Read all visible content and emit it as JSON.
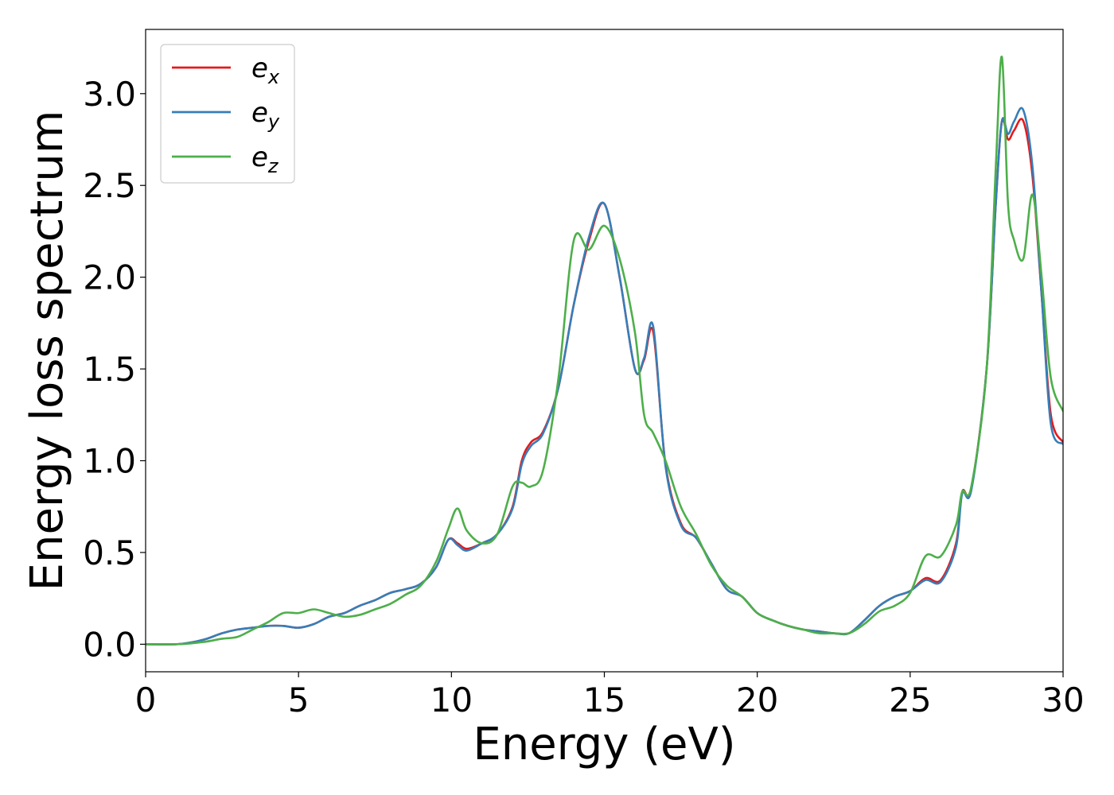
{
  "chart_data": {
    "type": "line",
    "title": "",
    "xlabel": "Energy (eV)",
    "ylabel": "Energy loss spectrum",
    "xlim": [
      0,
      30
    ],
    "ylim": [
      -0.15,
      3.35
    ],
    "xticks": [
      0,
      5,
      10,
      15,
      20,
      25,
      30
    ],
    "xtick_labels": [
      "0",
      "5",
      "10",
      "15",
      "20",
      "25",
      "30"
    ],
    "yticks": [
      0.0,
      0.5,
      1.0,
      1.5,
      2.0,
      2.5,
      3.0
    ],
    "ytick_labels": [
      "0.0",
      "0.5",
      "1.0",
      "1.5",
      "2.0",
      "2.5",
      "3.0"
    ],
    "grid": false,
    "legend_position": "top-left",
    "series": [
      {
        "name": "e",
        "subscript": "x",
        "color": "#e41a1c",
        "x": [
          0,
          1,
          1.5,
          2,
          2.5,
          3,
          3.5,
          4,
          4.5,
          5,
          5.5,
          6,
          6.5,
          7,
          7.5,
          8,
          8.5,
          9,
          9.5,
          9.9,
          10.2,
          10.5,
          11,
          11.5,
          12,
          12.3,
          12.6,
          13,
          13.5,
          14,
          14.5,
          15,
          15.5,
          16,
          16.3,
          16.6,
          17,
          17.5,
          18,
          18.5,
          19,
          19.5,
          20,
          20.5,
          21,
          21.5,
          22,
          22.5,
          23,
          23.5,
          24,
          24.5,
          25,
          25.5,
          26,
          26.5,
          26.7,
          27,
          27.5,
          27.8,
          28,
          28.2,
          28.4,
          28.7,
          29,
          29.3,
          29.6,
          30
        ],
        "values": [
          0.0,
          0.0,
          0.01,
          0.03,
          0.06,
          0.08,
          0.09,
          0.1,
          0.1,
          0.09,
          0.11,
          0.15,
          0.17,
          0.21,
          0.24,
          0.28,
          0.3,
          0.33,
          0.42,
          0.57,
          0.55,
          0.52,
          0.55,
          0.6,
          0.75,
          1.0,
          1.1,
          1.16,
          1.4,
          1.85,
          2.2,
          2.4,
          2.0,
          1.5,
          1.55,
          1.7,
          0.98,
          0.66,
          0.58,
          0.44,
          0.3,
          0.26,
          0.17,
          0.13,
          0.1,
          0.08,
          0.07,
          0.06,
          0.06,
          0.13,
          0.21,
          0.26,
          0.29,
          0.36,
          0.35,
          0.55,
          0.83,
          0.85,
          1.5,
          2.4,
          2.85,
          2.75,
          2.8,
          2.85,
          2.55,
          1.9,
          1.25,
          1.1
        ]
      },
      {
        "name": "e",
        "subscript": "y",
        "color": "#377eb8",
        "x": [
          0,
          1,
          1.5,
          2,
          2.5,
          3,
          3.5,
          4,
          4.5,
          5,
          5.5,
          6,
          6.5,
          7,
          7.5,
          8,
          8.5,
          9,
          9.5,
          9.9,
          10.2,
          10.5,
          11,
          11.5,
          12,
          12.3,
          12.6,
          13,
          13.5,
          14,
          14.5,
          15,
          15.5,
          16,
          16.3,
          16.6,
          17,
          17.5,
          18,
          18.5,
          19,
          19.5,
          20,
          20.5,
          21,
          21.5,
          22,
          22.5,
          23,
          23.5,
          24,
          24.5,
          25,
          25.5,
          26,
          26.5,
          26.7,
          27,
          27.5,
          27.8,
          28,
          28.2,
          28.4,
          28.7,
          29,
          29.3,
          29.6,
          30
        ],
        "values": [
          0.0,
          0.0,
          0.01,
          0.03,
          0.06,
          0.08,
          0.09,
          0.1,
          0.1,
          0.09,
          0.11,
          0.15,
          0.17,
          0.21,
          0.24,
          0.28,
          0.3,
          0.33,
          0.42,
          0.57,
          0.54,
          0.51,
          0.55,
          0.6,
          0.74,
          0.98,
          1.08,
          1.15,
          1.4,
          1.85,
          2.22,
          2.4,
          2.0,
          1.5,
          1.56,
          1.73,
          0.97,
          0.65,
          0.58,
          0.44,
          0.3,
          0.26,
          0.17,
          0.13,
          0.1,
          0.08,
          0.07,
          0.06,
          0.06,
          0.13,
          0.21,
          0.26,
          0.29,
          0.35,
          0.34,
          0.53,
          0.82,
          0.84,
          1.5,
          2.4,
          2.85,
          2.78,
          2.85,
          2.91,
          2.6,
          1.9,
          1.2,
          1.09
        ]
      },
      {
        "name": "e",
        "subscript": "z",
        "color": "#4daf4a",
        "x": [
          0,
          1,
          1.5,
          2,
          2.5,
          3,
          3.5,
          4,
          4.5,
          5,
          5.5,
          6,
          6.5,
          7,
          7.5,
          8,
          8.5,
          9,
          9.5,
          9.9,
          10.2,
          10.5,
          11,
          11.5,
          12,
          12.3,
          12.6,
          13,
          13.5,
          14,
          14.5,
          15,
          15.5,
          16,
          16.3,
          16.6,
          17,
          17.5,
          18,
          18.5,
          19,
          19.5,
          20,
          20.5,
          21,
          21.5,
          22,
          22.5,
          23,
          23.5,
          24,
          24.5,
          25,
          25.5,
          26,
          26.5,
          26.7,
          27,
          27.5,
          27.8,
          28,
          28.2,
          28.4,
          28.7,
          29,
          29.3,
          29.6,
          30
        ],
        "values": [
          0.0,
          0.0,
          0.005,
          0.015,
          0.03,
          0.04,
          0.08,
          0.12,
          0.17,
          0.17,
          0.19,
          0.17,
          0.15,
          0.16,
          0.19,
          0.22,
          0.27,
          0.32,
          0.45,
          0.63,
          0.74,
          0.62,
          0.55,
          0.6,
          0.86,
          0.88,
          0.86,
          0.95,
          1.45,
          2.2,
          2.15,
          2.28,
          2.1,
          1.7,
          1.25,
          1.15,
          1.0,
          0.75,
          0.6,
          0.43,
          0.32,
          0.26,
          0.17,
          0.13,
          0.1,
          0.08,
          0.06,
          0.06,
          0.06,
          0.11,
          0.18,
          0.21,
          0.28,
          0.48,
          0.48,
          0.65,
          0.83,
          0.86,
          1.5,
          2.6,
          3.2,
          2.4,
          2.2,
          2.1,
          2.45,
          2.0,
          1.45,
          1.27
        ]
      }
    ]
  }
}
